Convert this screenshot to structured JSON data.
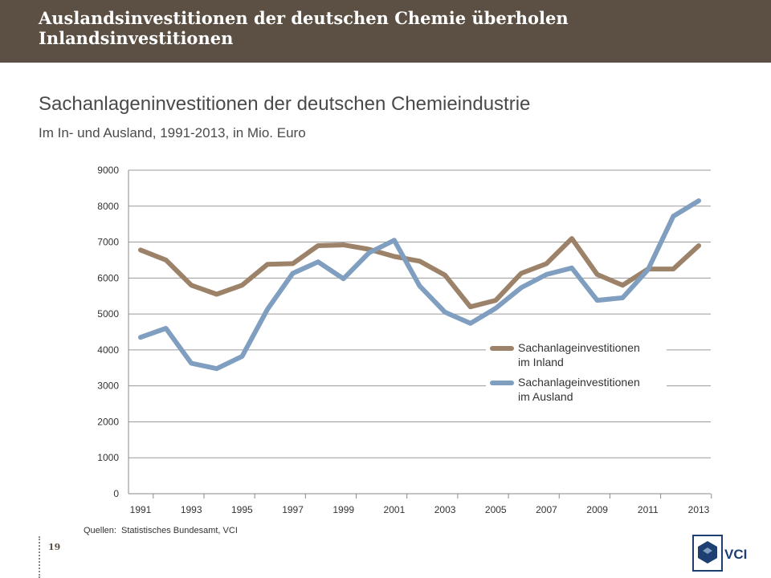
{
  "header": {
    "title": "Auslandsinvestitionen der deutschen Chemie überholen Inlandsinvestitionen"
  },
  "subtitle": "Sachanlageninvestitionen der deutschen Chemieindustrie",
  "subsubtitle": "Im In- und Ausland, 1991-2013, in Mio. Euro",
  "source": {
    "label": "Quellen:",
    "text": "Statistisches Bundesamt, VCI"
  },
  "page_number": "19",
  "logo": {
    "text": "VCI"
  },
  "colors": {
    "header_bg": "#5b5043",
    "inland": "#9c8268",
    "ausland": "#7f9ec0",
    "grid": "#9a9a9a"
  },
  "chart_data": {
    "type": "line",
    "title": "Sachanlageninvestitionen der deutschen Chemieindustrie",
    "xlabel": "",
    "ylabel": "Mio. Euro",
    "ylim": [
      0,
      9000
    ],
    "yticks": [
      0,
      1000,
      2000,
      3000,
      4000,
      5000,
      6000,
      7000,
      8000,
      9000
    ],
    "x": [
      1991,
      1992,
      1993,
      1994,
      1995,
      1996,
      1997,
      1998,
      1999,
      2000,
      2001,
      2002,
      2003,
      2004,
      2005,
      2006,
      2007,
      2008,
      2009,
      2010,
      2011,
      2012,
      2013
    ],
    "xtick_labels": [
      "1991",
      "1993",
      "1995",
      "1997",
      "1999",
      "2001",
      "2003",
      "2005",
      "2007",
      "2009",
      "2011",
      "2013"
    ],
    "grid": true,
    "legend_position": "right-middle",
    "series": [
      {
        "name": "Sachanlageinvestitionen im Inland",
        "legend_lines": [
          "Sachanlageinvestitionen",
          "im Inland"
        ],
        "color": "#9c8268",
        "values": [
          6780,
          6500,
          5800,
          5550,
          5800,
          6380,
          6400,
          6900,
          6920,
          6800,
          6600,
          6470,
          6080,
          5200,
          5380,
          6130,
          6400,
          7100,
          6100,
          5800,
          6250,
          6250,
          6900
        ]
      },
      {
        "name": "Sachanlageinvestitionen im Ausland",
        "legend_lines": [
          "Sachanlageinvestitionen",
          "im Ausland"
        ],
        "color": "#7f9ec0",
        "values": [
          4350,
          4600,
          3630,
          3480,
          3820,
          5130,
          6130,
          6450,
          5980,
          6700,
          7050,
          5780,
          5050,
          4740,
          5160,
          5730,
          6100,
          6280,
          5380,
          5450,
          6230,
          7720,
          8150
        ]
      }
    ]
  }
}
